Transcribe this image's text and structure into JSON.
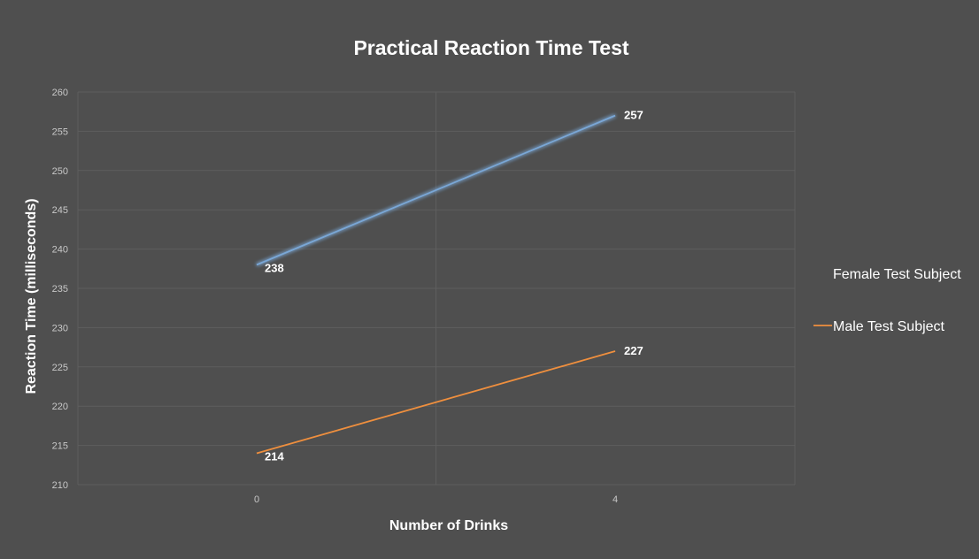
{
  "chart_data": {
    "type": "line",
    "title": "Practical Reaction Time Test",
    "xlabel": "Number of Drinks",
    "ylabel": "Reaction Time (milliseconds)",
    "categories": [
      "0",
      "4"
    ],
    "ylim": [
      210,
      260
    ],
    "yticks": [
      210,
      215,
      220,
      225,
      230,
      235,
      240,
      245,
      250,
      255,
      260
    ],
    "grid": true,
    "legend_position": "right",
    "series": [
      {
        "name": "Female Test Subject",
        "values": [
          238,
          257
        ],
        "color": "#7aa7d6",
        "glow": true
      },
      {
        "name": "Male Test Subject",
        "values": [
          214,
          227
        ],
        "color": "#ef8f3e",
        "glow": false
      }
    ]
  }
}
